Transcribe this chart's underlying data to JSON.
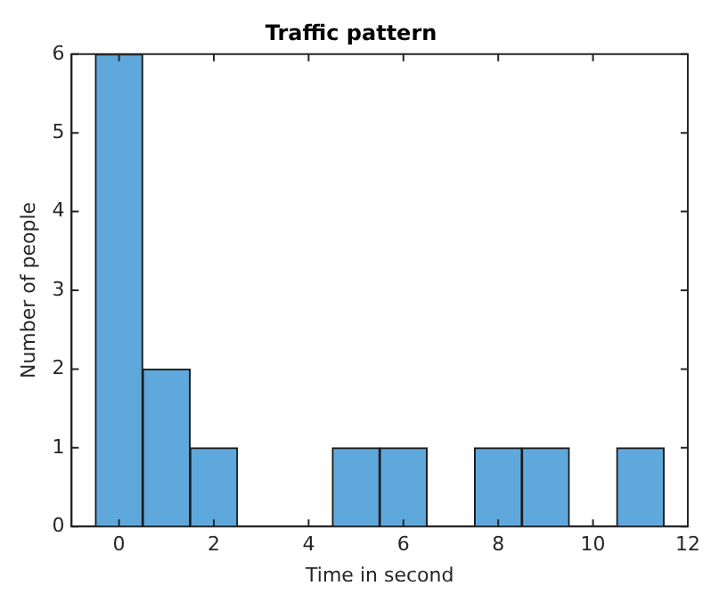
{
  "chart_data": {
    "type": "histogram",
    "title": "Traffic pattern",
    "xlabel": "Time in second",
    "ylabel": "Number of people",
    "bins": [
      -0.5,
      0.5,
      1.5,
      2.5,
      3.5,
      4.5,
      5.5,
      6.5,
      7.5,
      8.5,
      9.5,
      10.5,
      11.5
    ],
    "values": [
      6,
      2,
      1,
      0,
      0,
      1,
      1,
      0,
      1,
      1,
      0,
      1
    ],
    "color": "#5fa8dc",
    "xlim": [
      -1,
      12
    ],
    "xticks": [
      0,
      2,
      4,
      6,
      8,
      10,
      12
    ],
    "ylim": [
      0,
      6
    ],
    "yticks": [
      0,
      1,
      2,
      3,
      4,
      5,
      6
    ],
    "grid": false,
    "legend": false
  }
}
